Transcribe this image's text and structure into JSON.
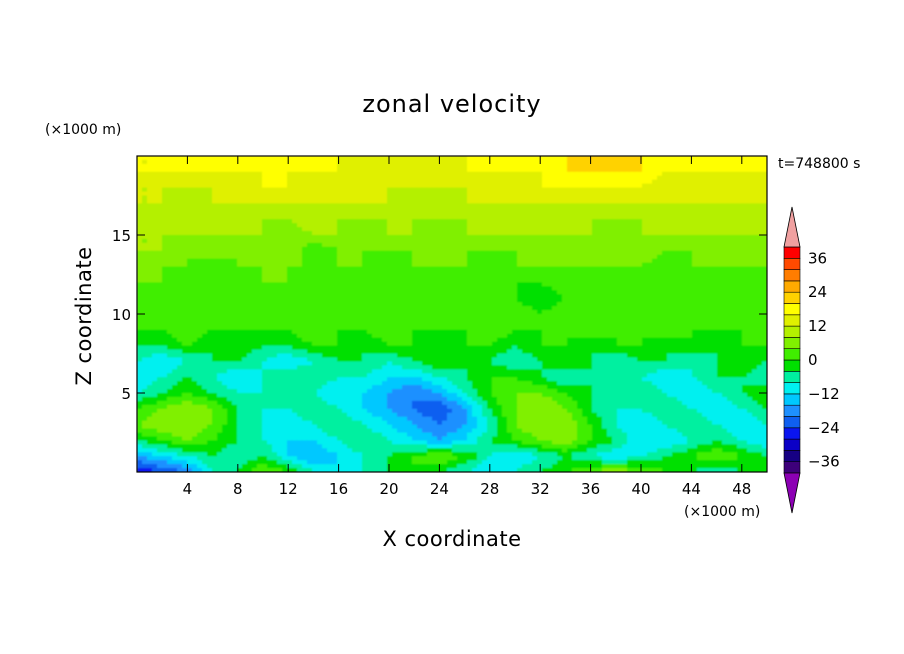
{
  "chart_data": {
    "type": "heatmap",
    "title": "zonal velocity",
    "xlabel": "X coordinate",
    "ylabel": "Z coordinate",
    "x_unit": "(×1000 m)",
    "y_unit": "(×1000 m)",
    "time_label": "t=748800 s",
    "xlim": [
      0,
      50
    ],
    "ylim": [
      0,
      20
    ],
    "x_ticks": [
      4,
      8,
      12,
      16,
      20,
      24,
      28,
      32,
      36,
      40,
      44,
      48
    ],
    "y_ticks": [
      5,
      10,
      15
    ],
    "colorbar": {
      "levels": [
        -40,
        -36,
        -32,
        -28,
        -24,
        -20,
        -16,
        -12,
        -8,
        -4,
        0,
        4,
        8,
        12,
        16,
        20,
        24,
        28,
        32,
        36,
        40
      ],
      "tick_labels": [
        36,
        24,
        12,
        0,
        -12,
        -24,
        -36
      ],
      "colors": [
        "#3d007a",
        "#160083",
        "#0b00c6",
        "#0a15f0",
        "#0f5ff0",
        "#1e90ff",
        "#00c8ff",
        "#00f0f0",
        "#00f0a0",
        "#00e000",
        "#40ee00",
        "#80f000",
        "#b4f000",
        "#e0f000",
        "#ffff00",
        "#ffd200",
        "#ffaa00",
        "#ff7d00",
        "#ff4a00",
        "#ff0000"
      ],
      "under_color": "#8c00b4",
      "over_color": "#f0a0a0"
    },
    "field_rows_description": "Dominant values by height band (z in km): 0-2 mixed -16..+8, 2-8 mostly -12..0 with positive lobes, 8-14 around 0..+4, 14-18 around +4..+12, 18-20 around +12..+20",
    "field": {
      "x_step": 2,
      "z_step": 1,
      "values": [
        [
          -28,
          -24,
          -20,
          -8,
          -4,
          4,
          0,
          -8,
          -12,
          -8,
          -4,
          0,
          -4,
          -8,
          -12,
          -8,
          -4,
          0,
          4,
          8,
          4,
          0,
          -4,
          -8,
          -4,
          0
        ],
        [
          -16,
          -12,
          -8,
          -4,
          -8,
          -4,
          -12,
          -16,
          -12,
          -8,
          -4,
          0,
          4,
          0,
          -8,
          -12,
          -8,
          -4,
          -8,
          -12,
          -8,
          -4,
          0,
          4,
          0,
          -4
        ],
        [
          -4,
          0,
          4,
          0,
          -4,
          -8,
          -12,
          -12,
          -8,
          -4,
          -8,
          -12,
          -16,
          -12,
          -4,
          0,
          4,
          8,
          0,
          -4,
          -12,
          -12,
          -8,
          -4,
          -8,
          -12
        ],
        [
          4,
          8,
          8,
          4,
          -4,
          -8,
          -12,
          -8,
          -4,
          -8,
          -12,
          -16,
          -20,
          -16,
          -8,
          4,
          8,
          8,
          0,
          -8,
          -12,
          -8,
          -4,
          -8,
          -12,
          -8
        ],
        [
          0,
          4,
          8,
          4,
          -4,
          -8,
          -8,
          -4,
          -8,
          -12,
          -16,
          -20,
          -24,
          -16,
          -4,
          4,
          8,
          4,
          -4,
          -8,
          -8,
          -4,
          -8,
          -12,
          -8,
          -4
        ],
        [
          -8,
          -4,
          0,
          -4,
          -8,
          -8,
          -4,
          -8,
          -12,
          -12,
          -16,
          -20,
          -16,
          -8,
          0,
          4,
          4,
          0,
          -4,
          -8,
          -4,
          -8,
          -12,
          -8,
          -4,
          0
        ],
        [
          -12,
          -8,
          -4,
          -8,
          -12,
          -8,
          -4,
          -4,
          -8,
          -8,
          -12,
          -12,
          -8,
          -4,
          0,
          0,
          -4,
          -8,
          -4,
          -4,
          -8,
          -12,
          -8,
          -4,
          -4,
          -8
        ],
        [
          -8,
          -12,
          -8,
          -4,
          -4,
          -8,
          -12,
          -8,
          -4,
          -4,
          -8,
          -4,
          0,
          -4,
          -4,
          -8,
          -4,
          0,
          -4,
          -8,
          -4,
          -4,
          -8,
          -4,
          0,
          -4
        ],
        [
          -4,
          -4,
          0,
          -4,
          0,
          -4,
          -4,
          0,
          0,
          -4,
          0,
          0,
          -4,
          0,
          0,
          -4,
          0,
          0,
          -4,
          0,
          0,
          -4,
          0,
          -4,
          0,
          0
        ],
        [
          0,
          0,
          4,
          0,
          0,
          0,
          0,
          4,
          0,
          0,
          4,
          0,
          0,
          0,
          4,
          0,
          0,
          0,
          4,
          0,
          0,
          4,
          0,
          0,
          0,
          4
        ],
        [
          4,
          0,
          0,
          4,
          0,
          4,
          0,
          0,
          0,
          4,
          0,
          4,
          0,
          0,
          0,
          4,
          0,
          4,
          0,
          0,
          4,
          0,
          0,
          4,
          0,
          0
        ],
        [
          0,
          4,
          0,
          0,
          4,
          0,
          0,
          4,
          0,
          0,
          0,
          4,
          0,
          4,
          0,
          0,
          -4,
          0,
          4,
          0,
          0,
          0,
          4,
          0,
          4,
          0
        ],
        [
          4,
          4,
          0,
          4,
          0,
          4,
          4,
          0,
          4,
          0,
          4,
          0,
          4,
          0,
          4,
          0,
          0,
          4,
          0,
          4,
          0,
          4,
          0,
          4,
          0,
          4
        ],
        [
          8,
          4,
          4,
          0,
          4,
          4,
          4,
          4,
          4,
          4,
          0,
          4,
          4,
          4,
          0,
          4,
          4,
          4,
          4,
          4,
          4,
          0,
          4,
          4,
          4,
          4
        ],
        [
          8,
          8,
          4,
          8,
          4,
          4,
          8,
          0,
          4,
          4,
          4,
          4,
          8,
          4,
          4,
          4,
          4,
          8,
          4,
          4,
          8,
          4,
          4,
          4,
          4,
          4
        ],
        [
          8,
          8,
          8,
          8,
          8,
          8,
          4,
          8,
          8,
          4,
          8,
          8,
          4,
          8,
          8,
          8,
          8,
          8,
          8,
          4,
          8,
          8,
          8,
          8,
          8,
          8
        ],
        [
          12,
          8,
          8,
          12,
          8,
          8,
          8,
          12,
          8,
          8,
          8,
          8,
          8,
          8,
          8,
          8,
          8,
          8,
          8,
          8,
          8,
          8,
          8,
          8,
          8,
          8
        ],
        [
          12,
          12,
          8,
          12,
          12,
          12,
          12,
          12,
          12,
          12,
          12,
          8,
          8,
          12,
          12,
          12,
          12,
          12,
          12,
          12,
          12,
          12,
          12,
          12,
          12,
          12
        ],
        [
          12,
          12,
          12,
          12,
          12,
          16,
          16,
          12,
          12,
          12,
          12,
          12,
          12,
          12,
          12,
          12,
          16,
          16,
          16,
          16,
          16,
          12,
          12,
          12,
          12,
          12
        ],
        [
          16,
          16,
          16,
          16,
          16,
          16,
          16,
          16,
          16,
          12,
          12,
          12,
          12,
          16,
          16,
          16,
          16,
          20,
          20,
          20,
          20,
          16,
          16,
          16,
          16,
          16
        ],
        [
          16,
          16,
          16,
          16,
          16,
          16,
          16,
          16,
          16,
          16,
          16,
          16,
          16,
          16,
          16,
          16,
          16,
          20,
          20,
          20,
          20,
          16,
          16,
          16,
          16,
          16
        ]
      ]
    }
  }
}
